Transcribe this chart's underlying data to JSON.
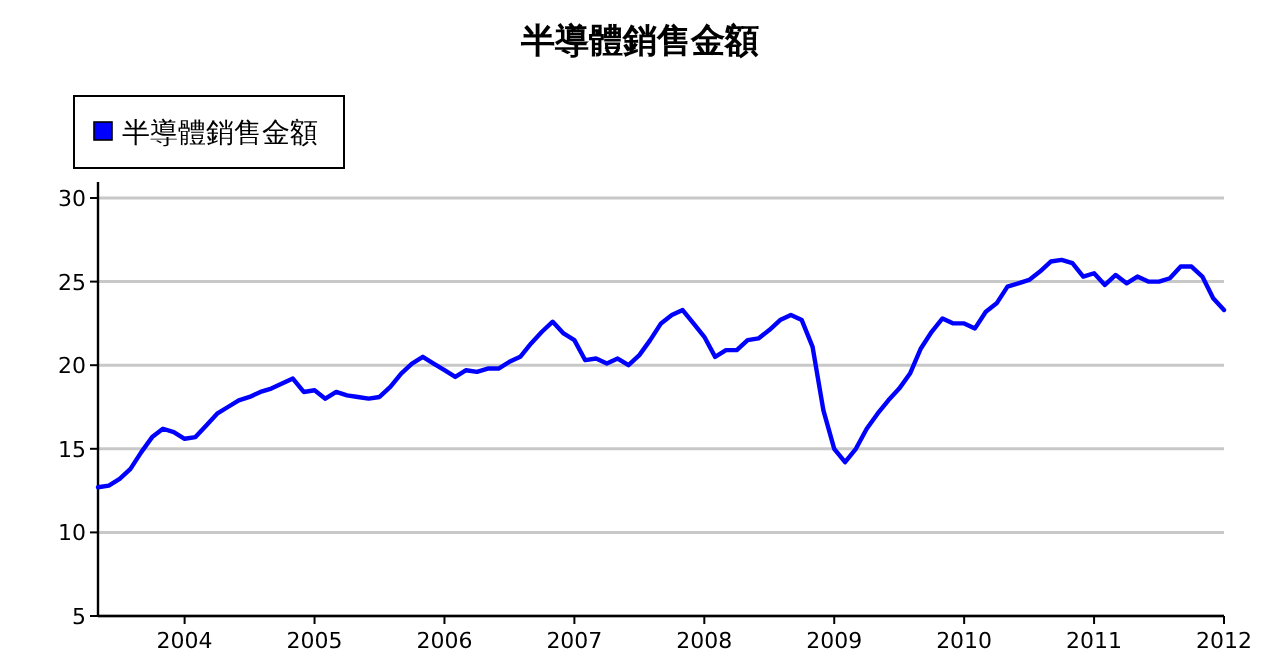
{
  "chart_data": {
    "type": "line",
    "title": "半導體銷售金額",
    "xlim": [
      "2003-05",
      "2012-01"
    ],
    "xticks": [
      "2004",
      "2005",
      "2006",
      "2007",
      "2008",
      "2009",
      "2010",
      "2011",
      "2012"
    ],
    "ylim": [
      5,
      30
    ],
    "yticks": [
      5,
      10,
      15,
      20,
      25,
      30
    ],
    "grid": "y",
    "legend": "top left",
    "x": [
      "2003-05",
      "2003-06",
      "2003-07",
      "2003-08",
      "2003-09",
      "2003-10",
      "2003-11",
      "2003-12",
      "2004-01",
      "2004-02",
      "2004-03",
      "2004-04",
      "2004-05",
      "2004-06",
      "2004-07",
      "2004-08",
      "2004-09",
      "2004-10",
      "2004-11",
      "2004-12",
      "2005-01",
      "2005-02",
      "2005-03",
      "2005-04",
      "2005-05",
      "2005-06",
      "2005-07",
      "2005-08",
      "2005-09",
      "2005-10",
      "2005-11",
      "2005-12",
      "2006-01",
      "2006-02",
      "2006-03",
      "2006-04",
      "2006-05",
      "2006-06",
      "2006-07",
      "2006-08",
      "2006-09",
      "2006-10",
      "2006-11",
      "2006-12",
      "2007-01",
      "2007-02",
      "2007-03",
      "2007-04",
      "2007-05",
      "2007-06",
      "2007-07",
      "2007-08",
      "2007-09",
      "2007-10",
      "2007-11",
      "2007-12",
      "2008-01",
      "2008-02",
      "2008-03",
      "2008-04",
      "2008-05",
      "2008-06",
      "2008-07",
      "2008-08",
      "2008-09",
      "2008-10",
      "2008-11",
      "2008-12",
      "2009-01",
      "2009-02",
      "2009-03",
      "2009-04",
      "2009-05",
      "2009-06",
      "2009-07",
      "2009-08",
      "2009-09",
      "2009-10",
      "2009-11",
      "2009-12",
      "2010-01",
      "2010-02",
      "2010-03",
      "2010-04",
      "2010-05",
      "2010-06",
      "2010-07",
      "2010-08",
      "2010-09",
      "2010-10",
      "2010-11",
      "2010-12",
      "2011-01",
      "2011-02",
      "2011-03",
      "2011-04",
      "2011-05",
      "2011-06",
      "2011-07",
      "2011-08",
      "2011-09",
      "2011-10",
      "2011-11",
      "2011-12",
      "2012-01"
    ],
    "series": [
      {
        "name": "半導體銷售金額",
        "color": "#0000ff",
        "values": [
          12.7,
          12.8,
          13.2,
          13.8,
          14.8,
          15.7,
          16.2,
          16.0,
          15.6,
          15.7,
          16.4,
          17.1,
          17.5,
          17.9,
          18.1,
          18.4,
          18.6,
          18.9,
          19.2,
          18.4,
          18.5,
          18.0,
          18.4,
          18.2,
          18.1,
          18.0,
          18.1,
          18.7,
          19.5,
          20.1,
          20.5,
          20.1,
          19.7,
          19.3,
          19.7,
          19.6,
          19.8,
          19.8,
          20.2,
          20.5,
          21.3,
          22.0,
          22.6,
          21.9,
          21.5,
          20.3,
          20.4,
          20.1,
          20.4,
          20.0,
          20.6,
          21.5,
          22.5,
          23.0,
          23.3,
          22.5,
          21.7,
          20.5,
          20.9,
          20.9,
          21.5,
          21.6,
          22.1,
          22.7,
          23.0,
          22.7,
          21.1,
          17.3,
          15.0,
          14.2,
          15.0,
          16.2,
          17.1,
          17.9,
          18.6,
          19.5,
          21.0,
          22.0,
          22.8,
          22.5,
          22.5,
          22.2,
          23.2,
          23.7,
          24.7,
          24.9,
          25.1,
          25.6,
          26.2,
          26.3,
          26.1,
          25.3,
          25.5,
          24.8,
          25.4,
          24.9,
          25.3,
          25.0,
          25.0,
          25.2,
          25.9,
          25.9,
          25.3,
          24.0,
          23.3
        ]
      }
    ]
  }
}
